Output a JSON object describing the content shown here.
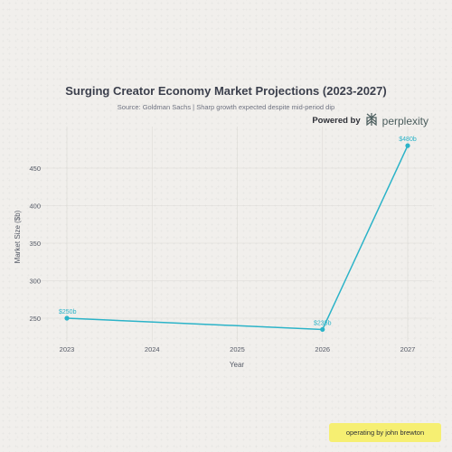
{
  "chart_data": {
    "type": "line",
    "title": "Surging Creator Economy Market Projections (2023-2027)",
    "subtitle": "Source: Goldman Sachs | Sharp growth expected despite mid-period dip",
    "xlabel": "Year",
    "ylabel": "Market Size ($b)",
    "x_ticks": [
      "2023",
      "2024",
      "2025",
      "2026",
      "2027"
    ],
    "y_ticks": [
      250,
      300,
      350,
      400,
      450
    ],
    "xlim": [
      2023,
      2027
    ],
    "ylim": [
      225,
      500
    ],
    "grid": true,
    "series": [
      {
        "color": "#2bb3c8",
        "points": [
          {
            "x": 2023,
            "y": 250,
            "label": "$250b"
          },
          {
            "x": 2026,
            "y": 235,
            "label": "$235b"
          },
          {
            "x": 2027,
            "y": 480,
            "label": "$480b"
          }
        ]
      }
    ]
  },
  "branding": {
    "powered_by": "Powered by",
    "brand_name": "perplexity",
    "icon": "perplexity-logo-icon"
  },
  "footer": {
    "operating_label": "operating by john brewton"
  },
  "colors": {
    "line": "#2bb3c8",
    "grid": "#dcdad6",
    "text": "#555a66",
    "badge": "#f6ef72"
  }
}
